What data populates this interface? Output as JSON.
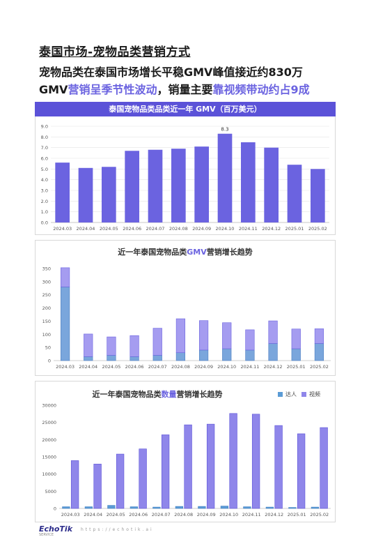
{
  "header": {
    "title": "泰国市场-宠物品类营销方式",
    "line1": "宠物品类在泰国市场增长平稳GMV峰值接近约830万",
    "line2_prefix": "GMV",
    "line2_accent1": "营销呈季节性波动",
    "line2_mid": "，销量主要",
    "line2_accent2": "靠视频带动约占9成"
  },
  "colors": {
    "primary": "#6b63e0",
    "banner": "#5b52d8",
    "darr": "#5b9bd5",
    "video": "#8f86ea"
  },
  "footer": {
    "brand": "EchoTik",
    "sub": "SERVICE",
    "url": "https://echotik.ai"
  },
  "chart_data": [
    {
      "type": "bar",
      "title": "泰国宠物品类品类近一年 GMV（百万美元）",
      "categories": [
        "2024.03",
        "2024.04",
        "2024.05",
        "2024.06",
        "2024.07",
        "2024.08",
        "2024.09",
        "2024.10",
        "2024.11",
        "2024.12",
        "2025.01",
        "2025.02"
      ],
      "values": [
        5.6,
        5.1,
        5.2,
        6.7,
        6.8,
        6.9,
        7.1,
        8.3,
        7.5,
        7.0,
        5.4,
        5.0
      ],
      "data_labels": {
        "2024.10": "8.3"
      },
      "ylim": [
        0,
        9
      ],
      "yticks": [
        "0.0",
        "1.0",
        "2.0",
        "3.0",
        "4.0",
        "5.0",
        "6.0",
        "7.0",
        "8.0",
        "9.0"
      ],
      "grid": true
    },
    {
      "type": "bar",
      "stacked": true,
      "title_prefix": "近一年泰国宠物品类",
      "title_highlight": "GMV",
      "title_suffix": "营销增长趋势",
      "categories": [
        "2024.03",
        "2024.04",
        "2024.05",
        "2024.06",
        "2024.07",
        "2024.08",
        "2024.09",
        "2024.10",
        "2024.11",
        "2024.12",
        "2025.01",
        "2025.02"
      ],
      "series": [
        {
          "values": [
            280,
            15,
            20,
            15,
            20,
            30,
            40,
            45,
            40,
            65,
            45,
            65
          ]
        },
        {
          "values": [
            73,
            86,
            70,
            80,
            103,
            129,
            112,
            99,
            77,
            86,
            75,
            56
          ]
        }
      ],
      "ylim": [
        0,
        350
      ],
      "yticks": [
        "0",
        "50",
        "100",
        "150",
        "200",
        "250",
        "300",
        "350"
      ]
    },
    {
      "type": "bar",
      "title_prefix": "近一年泰国宠物品类",
      "title_highlight": "数量",
      "title_suffix": "营销增长趋势",
      "legend": [
        "达人",
        "视频"
      ],
      "categories": [
        "2024.03",
        "2024.04",
        "2024.05",
        "2024.06",
        "2024.07",
        "2024.08",
        "2024.09",
        "2024.10",
        "2024.11",
        "2024.12",
        "2025.01",
        "2025.02"
      ],
      "series": [
        {
          "name": "达人",
          "values": [
            500,
            500,
            900,
            500,
            400,
            600,
            600,
            700,
            500,
            400,
            300,
            400
          ]
        },
        {
          "name": "视频",
          "values": [
            13900,
            12900,
            15800,
            17300,
            21400,
            24300,
            24500,
            27600,
            27400,
            24100,
            21700,
            23500
          ]
        }
      ],
      "ylim": [
        0,
        30000
      ],
      "yticks": [
        "0",
        "5000",
        "10000",
        "15000",
        "20000",
        "25000",
        "30000"
      ]
    }
  ]
}
